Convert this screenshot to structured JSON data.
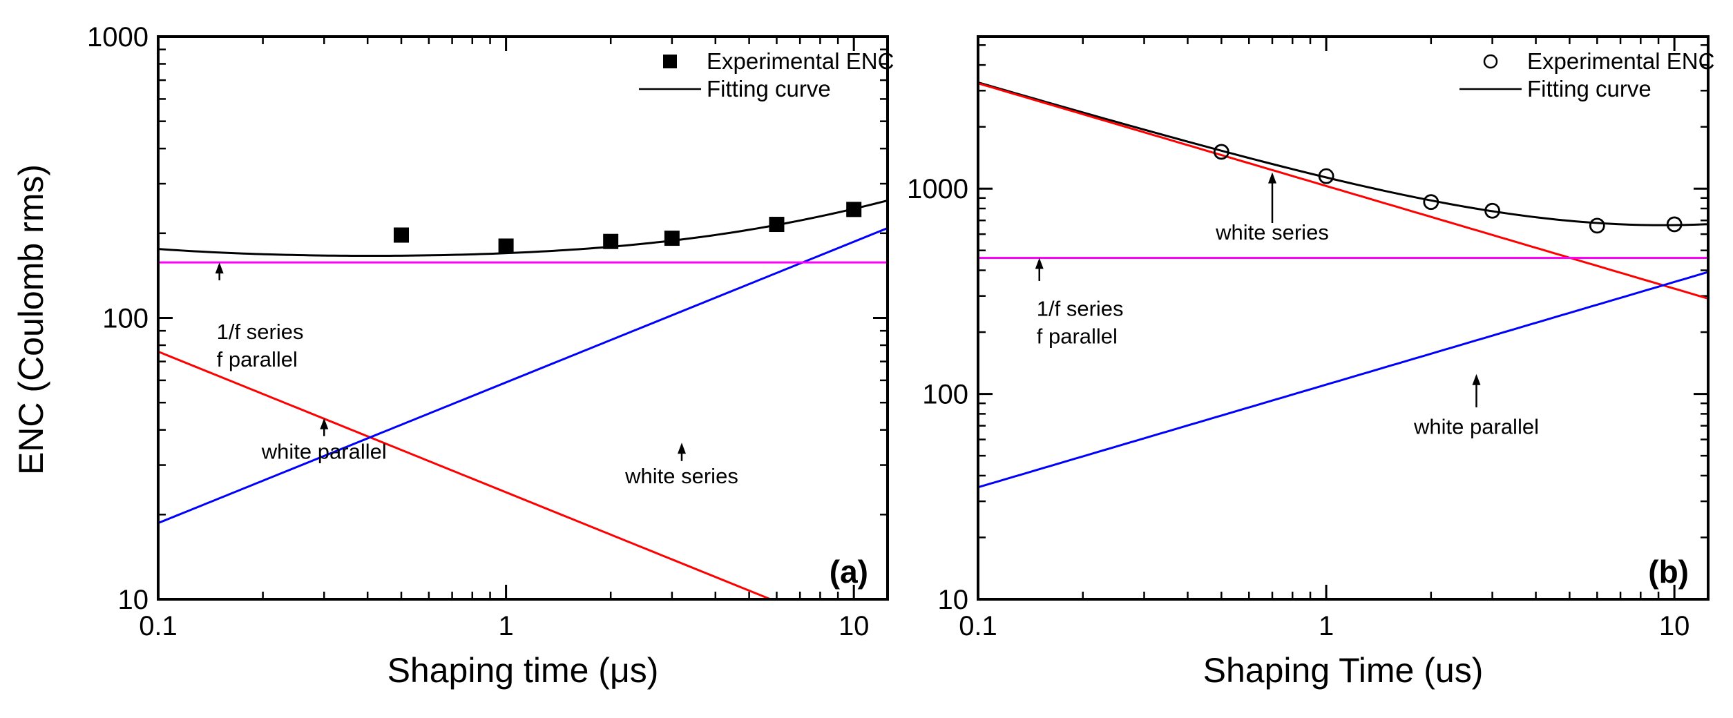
{
  "chart_data": [
    {
      "panel": "a",
      "type": "line",
      "panel_label": "(a)",
      "xlabel": "Shaping time (μs)",
      "ylabel": "ENC (Coulomb rms)",
      "xscale": "log",
      "yscale": "log",
      "xlim": [
        0.1,
        12.5
      ],
      "ylim": [
        10,
        1000
      ],
      "x_ticks": [
        {
          "value": 0.1,
          "label": "0.1"
        },
        {
          "value": 1,
          "label": "1"
        },
        {
          "value": 10,
          "label": "10"
        }
      ],
      "y_ticks": [
        {
          "value": 10,
          "label": "10"
        },
        {
          "value": 100,
          "label": "100"
        },
        {
          "value": 1000,
          "label": "1000"
        }
      ],
      "legend_position": "top-right",
      "legend": [
        {
          "name": "Experimental ENC",
          "marker": "filled-square"
        },
        {
          "name": "Fitting curve",
          "marker": "line"
        }
      ],
      "series": [
        {
          "name": "Experimental ENC",
          "kind": "markers",
          "marker": "filled-square",
          "color": "#000000",
          "x": [
            0.5,
            1,
            2,
            3,
            6,
            10
          ],
          "y": [
            197,
            180,
            187,
            192,
            215,
            243
          ]
        },
        {
          "name": "Fitting curve",
          "kind": "fit",
          "color": "#000000",
          "white_series_a": 24,
          "white_parallel_b": 59,
          "flicker_c": 157.5
        },
        {
          "name": "white series",
          "kind": "power",
          "color": "#ff0000",
          "coef": 24,
          "exp": -0.5
        },
        {
          "name": "white parallel",
          "kind": "power",
          "color": "#0000ff",
          "coef": 59,
          "exp": 0.5
        },
        {
          "name": "1/f series f parallel",
          "kind": "const",
          "color": "#ff00ff",
          "value": 157.5
        }
      ],
      "annotations": [
        {
          "lines": [
            "1/f series",
            "f parallel"
          ],
          "x": 0.15,
          "y": 88,
          "arrow_from_y": 136,
          "arrow_to_y": 157.5
        },
        {
          "lines": [
            "white parallel"
          ],
          "x": 0.3,
          "y": 33,
          "arrow_from_y": 38,
          "arrow_to_y": 44
        },
        {
          "lines": [
            "white series"
          ],
          "x": 3.2,
          "y": 27,
          "arrow_from_y": 31,
          "arrow_to_y": 36
        }
      ]
    },
    {
      "panel": "b",
      "type": "line",
      "panel_label": "(b)",
      "xlabel": "Shaping Time (us)",
      "ylabel": "",
      "xscale": "log",
      "yscale": "log",
      "xlim": [
        0.1,
        12.5
      ],
      "ylim": [
        10,
        5500
      ],
      "x_ticks": [
        {
          "value": 0.1,
          "label": "0.1"
        },
        {
          "value": 1,
          "label": "1"
        },
        {
          "value": 10,
          "label": "10"
        }
      ],
      "y_ticks": [
        {
          "value": 10,
          "label": "10"
        },
        {
          "value": 100,
          "label": "100"
        },
        {
          "value": 1000,
          "label": "1000"
        }
      ],
      "legend_position": "top-right",
      "legend": [
        {
          "name": "Experimental ENC",
          "marker": "open-circle"
        },
        {
          "name": "Fitting curve",
          "marker": "line"
        }
      ],
      "series": [
        {
          "name": "Experimental ENC",
          "kind": "markers",
          "marker": "open-circle",
          "color": "#000000",
          "x": [
            0.5,
            1,
            2,
            3,
            6,
            10
          ],
          "y": [
            1510,
            1150,
            860,
            780,
            660,
            670
          ]
        },
        {
          "name": "Fitting curve",
          "kind": "fit",
          "color": "#000000",
          "white_series_a": 1030,
          "white_parallel_b": 111,
          "flicker_c": 460
        },
        {
          "name": "white series",
          "kind": "power",
          "color": "#ff0000",
          "coef": 1030,
          "exp": -0.5
        },
        {
          "name": "white parallel",
          "kind": "power",
          "color": "#0000ff",
          "coef": 111,
          "exp": 0.5
        },
        {
          "name": "1/f series f parallel",
          "kind": "const",
          "color": "#ff00ff",
          "value": 460
        }
      ],
      "annotations": [
        {
          "lines": [
            "white series"
          ],
          "x": 0.7,
          "y": 600,
          "arrow_from_y": 680,
          "arrow_to_y": 1200
        },
        {
          "lines": [
            "1/f series",
            "f parallel"
          ],
          "x": 0.15,
          "y": 255,
          "arrow_from_y": 355,
          "arrow_to_y": 460
        },
        {
          "lines": [
            "white parallel"
          ],
          "x": 2.7,
          "y": 68,
          "arrow_from_y": 86,
          "arrow_to_y": 125
        }
      ]
    }
  ]
}
